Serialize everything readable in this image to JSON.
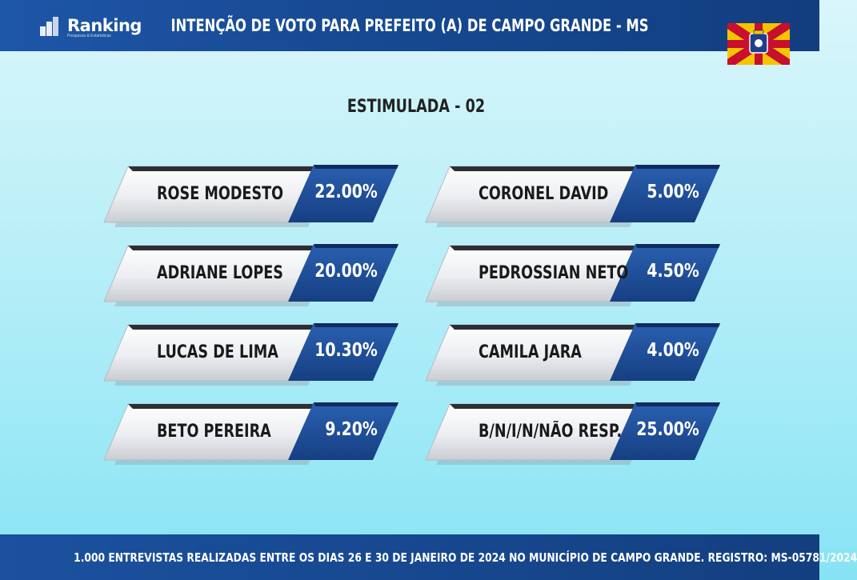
{
  "header": {
    "logo_text": "Ranking",
    "logo_subtext": "Pesquisas & Estatísticas",
    "title": "INTENÇÃO DE VOTO PARA PREFEITO (A) DE CAMPO GRANDE - MS"
  },
  "flag": {
    "icon": "campo-grande-flag-icon",
    "colors": [
      "#f5c400",
      "#c8102e",
      "#1e3f8a",
      "#ffffff"
    ]
  },
  "colors": {
    "header": "#174a93",
    "card_blue": "#1f4f9a",
    "card_silver": "#eef0f3"
  },
  "chart_data": {
    "type": "table",
    "title": "ESTIMULADA - 02",
    "unit": "%",
    "candidates": [
      {
        "name": "ROSE MODESTO",
        "value": 22.0,
        "label": "22.00%"
      },
      {
        "name": "ADRIANE LOPES",
        "value": 20.0,
        "label": "20.00%"
      },
      {
        "name": "LUCAS DE LIMA",
        "value": 10.3,
        "label": "10.30%"
      },
      {
        "name": "BETO PEREIRA",
        "value": 9.2,
        "label": "9.20%"
      },
      {
        "name": "CORONEL DAVID",
        "value": 5.0,
        "label": "5.00%"
      },
      {
        "name": "PEDROSSIAN NETO",
        "value": 4.5,
        "label": "4.50%"
      },
      {
        "name": "CAMILA JARA",
        "value": 4.0,
        "label": "4.00%"
      },
      {
        "name": "B/N/I/N/NÃO RESP.",
        "value": 25.0,
        "label": "25.00%"
      }
    ]
  },
  "footer": {
    "text": "1.000 ENTREVISTAS REALIZADAS ENTRE OS DIAS 26 E 30 DE JANEIRO DE 2024 NO MUNICÍPIO DE CAMPO GRANDE. REGISTRO: MS-05781/2024"
  }
}
